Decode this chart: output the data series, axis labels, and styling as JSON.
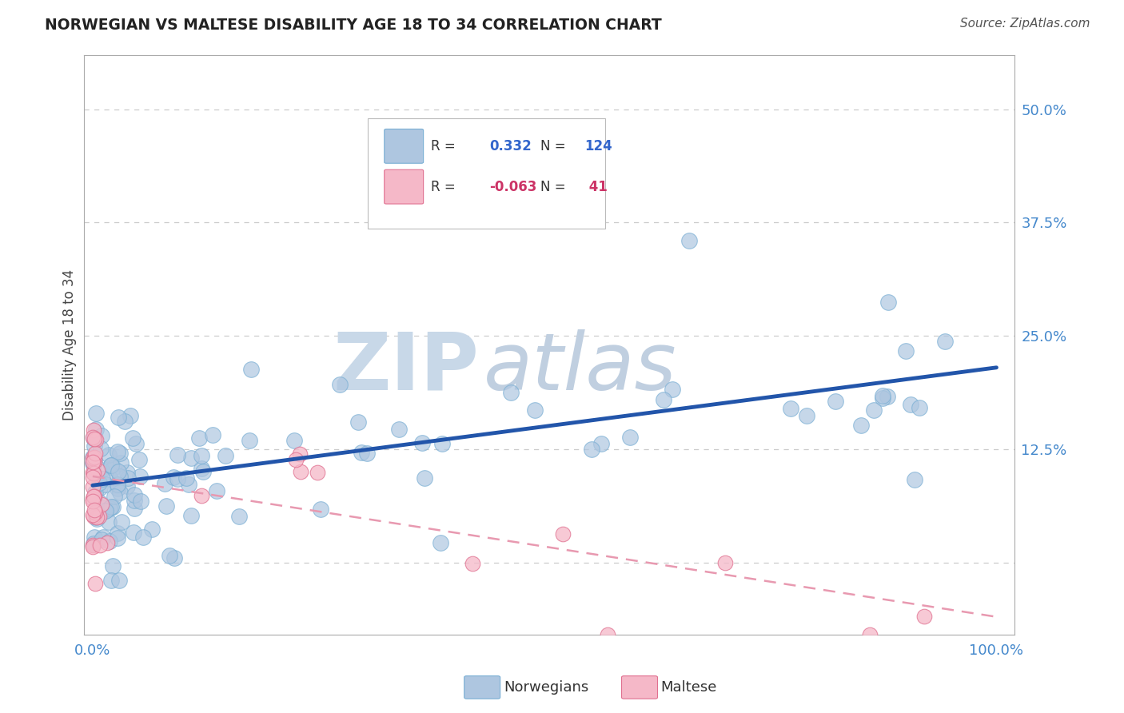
{
  "title": "NORWEGIAN VS MALTESE DISABILITY AGE 18 TO 34 CORRELATION CHART",
  "source_text": "Source: ZipAtlas.com",
  "ylabel": "Disability Age 18 to 34",
  "xlim": [
    -0.01,
    1.02
  ],
  "ylim": [
    -0.08,
    0.56
  ],
  "background_color": "#ffffff",
  "watermark_text1": "ZIP",
  "watermark_text2": "atlas",
  "watermark_color1": "#c8d8e8",
  "watermark_color2": "#c0cfe0",
  "norwegian_color": "#aec6e0",
  "norwegian_edge_color": "#7aafd4",
  "maltese_color": "#f5b8c8",
  "maltese_edge_color": "#e07090",
  "norwegian_line_color": "#2255aa",
  "maltese_line_color": "#e899b0",
  "R_norwegian": 0.332,
  "N_norwegian": 124,
  "R_maltese": -0.063,
  "N_maltese": 41,
  "legend_r_color_norwegian": "#3366cc",
  "legend_r_color_maltese": "#cc3366",
  "nor_line_x0": 0.0,
  "nor_line_y0": 0.085,
  "nor_line_x1": 1.0,
  "nor_line_y1": 0.215,
  "mal_line_x0": 0.0,
  "mal_line_y0": 0.095,
  "mal_line_x1": 1.0,
  "mal_line_y1": -0.06,
  "grid_yticks": [
    0.0,
    0.125,
    0.25,
    0.375,
    0.5
  ],
  "grid_color": "#cccccc",
  "right_tick_labels": [
    "",
    "12.5%",
    "25.0%",
    "37.5%",
    "50.0%"
  ],
  "title_color": "#222222",
  "source_color": "#555555",
  "tick_color": "#4488cc"
}
